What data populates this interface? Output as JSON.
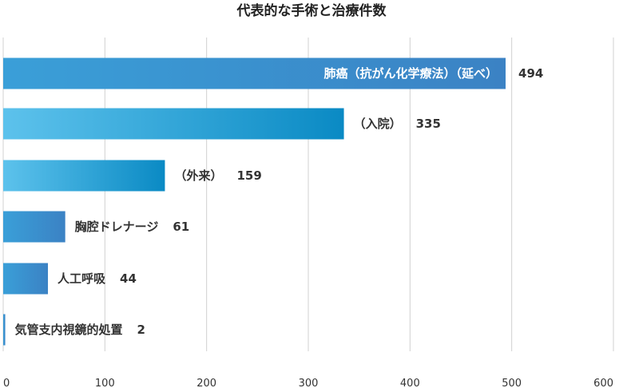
{
  "chart_data": {
    "type": "bar",
    "orientation": "horizontal",
    "title": "代表的な手術と治療件数",
    "xlabel": "",
    "ylabel": "",
    "xlim": [
      0,
      600
    ],
    "xticks": [
      0,
      100,
      200,
      300,
      400,
      500,
      600
    ],
    "grid": "vertical",
    "legend": "none",
    "categories": [
      "肺癌（抗がん化学療法）（延べ）",
      "（入院）",
      "（外来）",
      "胸腔ドレナージ",
      "人工呼吸",
      "気管支内視鏡的処置"
    ],
    "values": [
      494,
      335,
      159,
      61,
      44,
      2
    ],
    "colors": {
      "bar_a_start": "#3a9fd8",
      "bar_a_end": "#3b82c4",
      "bar_b_start": "#5dc2ec",
      "bar_b_end": "#0a8ac4",
      "grid": "#d0d0d0"
    }
  }
}
